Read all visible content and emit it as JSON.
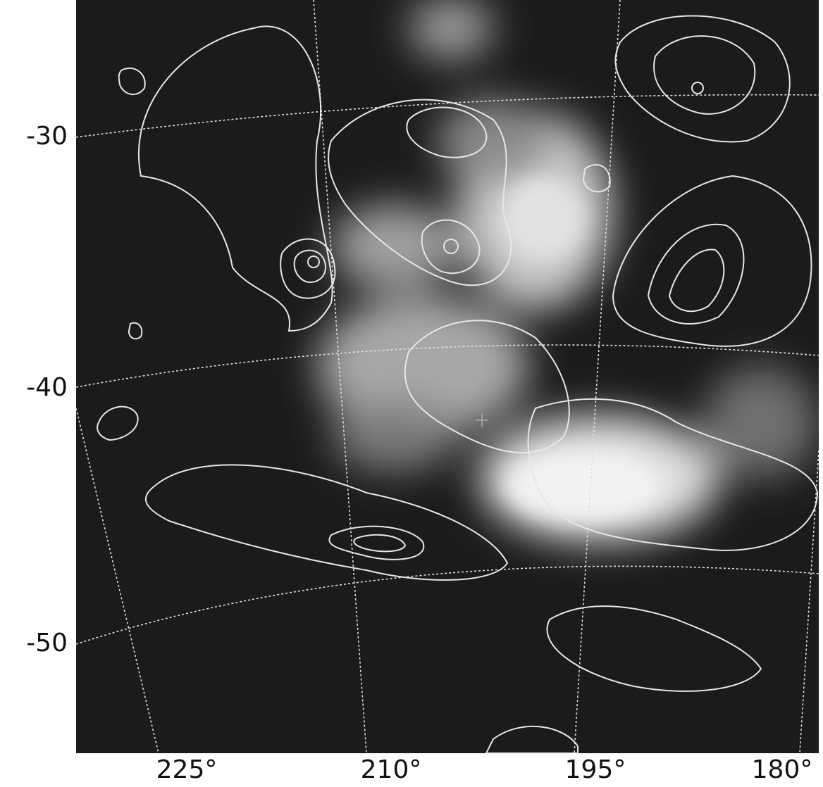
{
  "y_labels": [
    "-30",
    "-40",
    "-50"
  ],
  "x_labels": [
    "225°",
    "210°",
    "195°",
    "180°"
  ]
}
